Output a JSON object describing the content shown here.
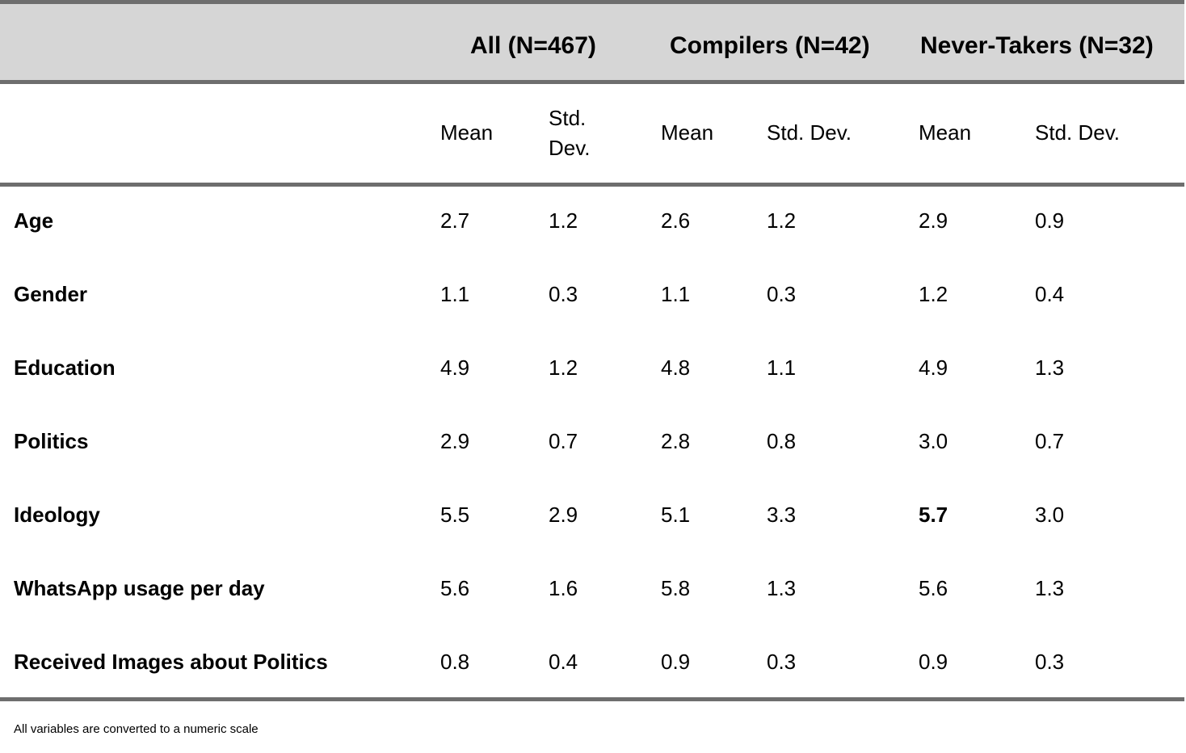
{
  "table": {
    "groups": [
      {
        "label": "All (N=467)"
      },
      {
        "label": "Compilers (N=42)"
      },
      {
        "label": "Never-Takers (N=32)"
      }
    ],
    "subheaders": {
      "all_mean": "Mean",
      "all_sd_line1": "Std.",
      "all_sd_line2": "Dev.",
      "comp_mean": "Mean",
      "comp_sd": "Std. Dev.",
      "never_mean": "Mean",
      "never_sd": "Std. Dev."
    },
    "rows": [
      {
        "label": "Age",
        "values": [
          "2.7",
          "1.2",
          "2.6",
          "1.2",
          "2.9",
          "0.9"
        ]
      },
      {
        "label": "Gender",
        "values": [
          "1.1",
          "0.3",
          "1.1",
          "0.3",
          "1.2",
          "0.4"
        ]
      },
      {
        "label": "Education",
        "values": [
          "4.9",
          "1.2",
          "4.8",
          "1.1",
          "4.9",
          "1.3"
        ]
      },
      {
        "label": "Politics",
        "values": [
          "2.9",
          "0.7",
          "2.8",
          "0.8",
          "3.0",
          "0.7"
        ]
      },
      {
        "label": "Ideology",
        "values": [
          "5.5",
          "2.9",
          "5.1",
          "3.3",
          "5.7",
          "3.0"
        ]
      },
      {
        "label": "WhatsApp usage per day",
        "values": [
          "5.6",
          "1.6",
          "5.8",
          "1.3",
          "5.6",
          "1.3"
        ]
      },
      {
        "label": "Received Images about Politics",
        "values": [
          "0.8",
          "0.4",
          "0.9",
          "0.3",
          "0.9",
          "0.3"
        ]
      }
    ],
    "note": "All variables are converted to a numeric scale"
  }
}
